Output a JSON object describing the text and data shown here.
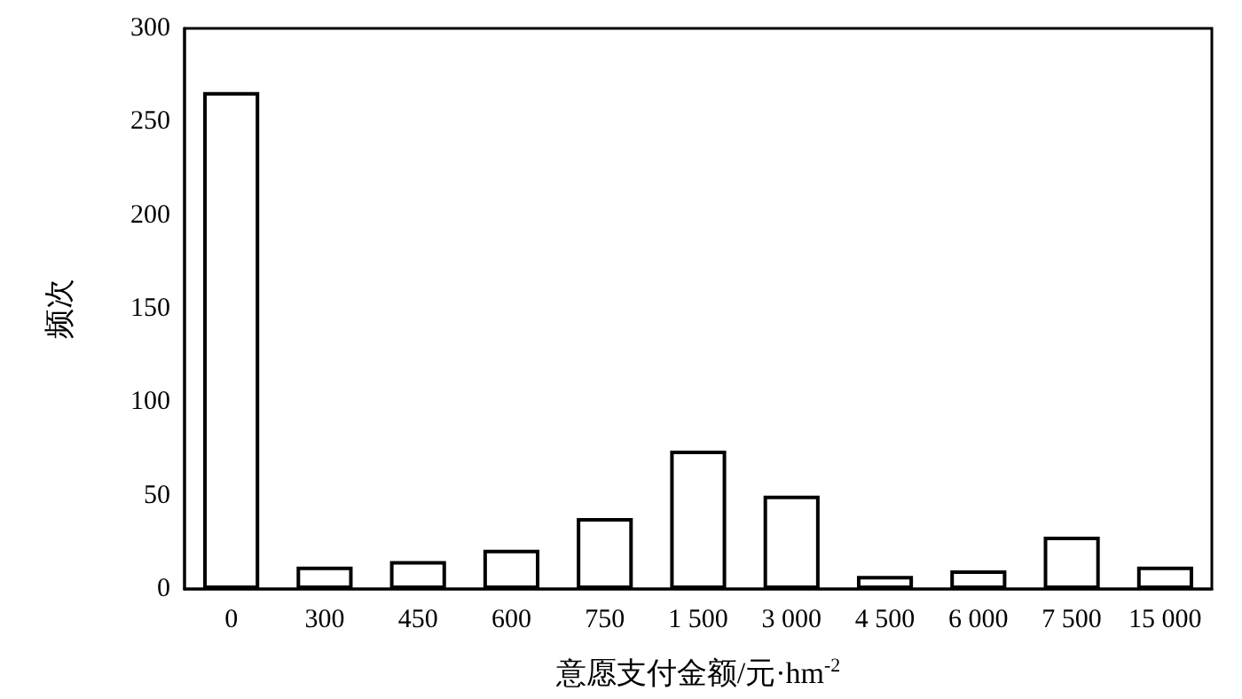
{
  "chart_data": {
    "type": "bar",
    "xlabel": "意愿支付金额/元·hm$^{-2}$",
    "ylabel": "频次",
    "categories": [
      "0",
      "300",
      "450",
      "600",
      "750",
      "1 500",
      "3 000",
      "4 500",
      "6 000",
      "7 500",
      "15 000"
    ],
    "values": [
      266,
      12,
      15,
      21,
      38,
      74,
      50,
      7,
      10,
      28,
      12
    ],
    "color": "#ffffff",
    "ylim": [
      0,
      300
    ],
    "yticks": [
      0,
      50,
      100,
      150,
      200,
      250,
      300
    ],
    "grid": false
  }
}
